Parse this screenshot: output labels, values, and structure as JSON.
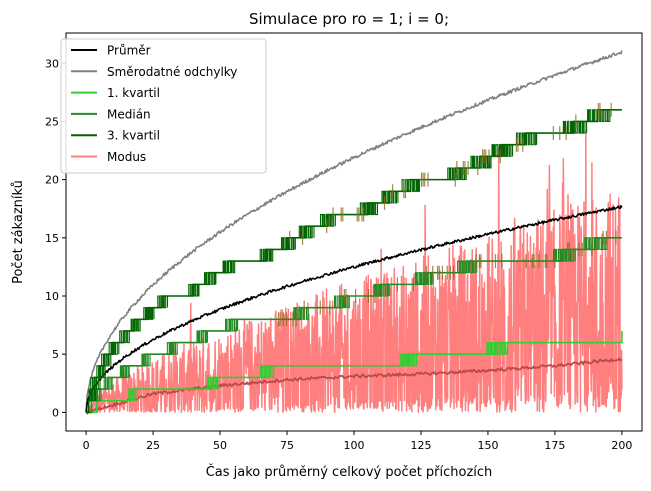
{
  "chart_data": {
    "type": "line",
    "title": "Simulace pro ro = 1; i = 0;",
    "xlabel": "Čas jako průměrný celkový počet příchozích",
    "ylabel": "Počet zákazníků",
    "xlim": [
      -7.5,
      207.5
    ],
    "ylim": [
      -1.6,
      32.6
    ],
    "x_ticks": [
      0,
      25,
      50,
      75,
      100,
      125,
      150,
      175,
      200
    ],
    "y_ticks": [
      0,
      5,
      10,
      15,
      20,
      25,
      30
    ],
    "legend_position": "top-left",
    "grid": false,
    "series": [
      {
        "name": "Průměr",
        "color": "#000000",
        "kind": "curve",
        "coef": 1.25,
        "power": 0.5,
        "noise": 0.12,
        "x": [
          0,
          10,
          25,
          50,
          75,
          100,
          125,
          150,
          175,
          200
        ],
        "y": [
          0,
          3.9,
          6.2,
          8.8,
          10.8,
          12.4,
          13.9,
          15.2,
          16.5,
          17.8
        ]
      },
      {
        "name": "Směrodatné odchylky",
        "color": "#808080",
        "kind": "curve",
        "coef": 2.19,
        "power": 0.5,
        "noise": 0.14,
        "x": [
          0,
          10,
          25,
          50,
          75,
          100,
          125,
          150,
          175,
          200
        ],
        "y": [
          0,
          6.9,
          10.9,
          15.5,
          19.0,
          21.9,
          24.5,
          26.8,
          29.0,
          31.0
        ]
      },
      {
        "name": "1. kvartil",
        "color": "#32cd32",
        "kind": "step",
        "x": [
          0,
          4,
          9,
          17,
          30,
          47,
          67,
          92,
          120,
          153,
          200
        ],
        "y": [
          0,
          1,
          1,
          2,
          2,
          3,
          4,
          4,
          5,
          6,
          7
        ]
      },
      {
        "name": "Medián",
        "color": "#228b22",
        "kind": "step",
        "x": [
          0,
          2,
          4,
          8,
          14,
          22,
          32,
          43,
          54,
          65,
          80,
          95,
          110,
          126,
          142,
          160,
          178,
          190,
          200
        ],
        "y": [
          0,
          1,
          2,
          3,
          4,
          5,
          6,
          7,
          8,
          8,
          9,
          10,
          11,
          12,
          13,
          13,
          14,
          15,
          15
        ]
      },
      {
        "name": "3. kvartil",
        "color": "#006400",
        "kind": "step",
        "x": [
          0,
          1,
          2,
          3,
          5,
          7,
          10,
          14,
          18,
          23,
          28,
          34,
          40,
          46,
          53,
          60,
          67,
          75,
          82,
          90,
          98,
          105,
          113,
          121,
          130,
          138,
          147,
          155,
          164,
          173,
          182,
          191,
          200
        ],
        "y": [
          0,
          1,
          2,
          3,
          4,
          5,
          6,
          7,
          8,
          9,
          10,
          10,
          11,
          12,
          13,
          13,
          14,
          15,
          16,
          17,
          17,
          18,
          19,
          20,
          20,
          21,
          22,
          23,
          24,
          24,
          25,
          26,
          26
        ]
      },
      {
        "name": "Modus",
        "color": "#ff7f7f",
        "kind": "noisy",
        "x": [
          0,
          25,
          50,
          75,
          100,
          125,
          150,
          175,
          200
        ],
        "y": [
          0,
          1.6,
          2.3,
          2.8,
          3.1,
          3.3,
          3.6,
          4.0,
          4.6
        ]
      }
    ]
  }
}
